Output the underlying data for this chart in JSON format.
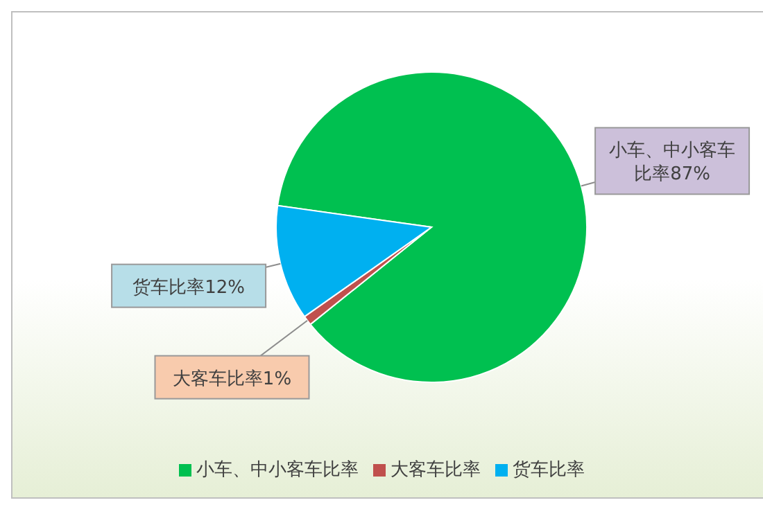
{
  "chart_data": {
    "type": "pie",
    "categories": [
      "小车、中小客车比率",
      "大客车比率",
      "货车比率"
    ],
    "values": [
      87,
      1,
      12
    ],
    "colors": [
      "#00c050",
      "#c0504d",
      "#00b0f0"
    ],
    "value_labels": [
      "小车、中小客车比率87%",
      "大客车比率1%",
      "货车比率12%"
    ],
    "legend": "bottom"
  }
}
